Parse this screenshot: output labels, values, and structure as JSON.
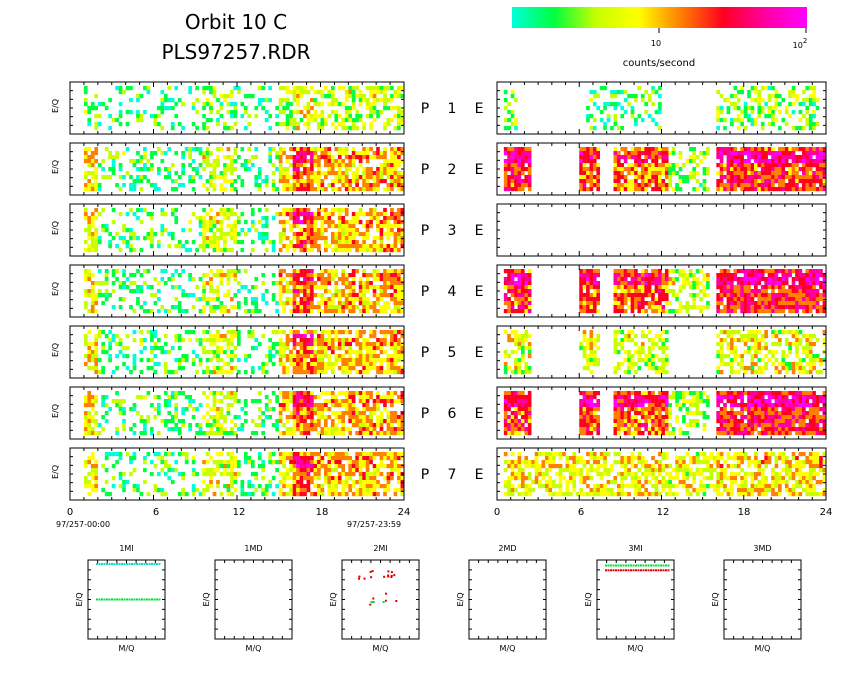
{
  "header": {
    "title_line1": "Orbit 10 C",
    "title_line2": "PLS97257.RDR"
  },
  "colorbar": {
    "tick_10": "10",
    "tick_100_base": "10",
    "tick_100_exp": "2",
    "label": "counts/second",
    "stops": [
      "#00ffd8",
      "#00ff40",
      "#c8ff00",
      "#ffff00",
      "#ff8000",
      "#ff0020",
      "#ff00a0",
      "#ff00ff"
    ]
  },
  "panel_labels": [
    {
      "p": "P",
      "n": "1",
      "e": "E"
    },
    {
      "p": "P",
      "n": "2",
      "e": "E"
    },
    {
      "p": "P",
      "n": "3",
      "e": "E"
    },
    {
      "p": "P",
      "n": "4",
      "e": "E"
    },
    {
      "p": "P",
      "n": "5",
      "e": "E"
    },
    {
      "p": "P",
      "n": "6",
      "e": "E"
    },
    {
      "p": "P",
      "n": "7",
      "e": "E"
    }
  ],
  "left_ylabel": "E/Q",
  "left_xticks": [
    "0",
    "6",
    "12",
    "18",
    "24"
  ],
  "right_xticks": [
    "0",
    "6",
    "12",
    "18",
    "24"
  ],
  "left_start_label": "97/257-00:00",
  "left_end_label": "97/257-23:59",
  "small_panels": [
    {
      "title": "1MI",
      "xlabel": "M/Q",
      "ylabel": "E/Q"
    },
    {
      "title": "1MD",
      "xlabel": "M/Q",
      "ylabel": "E/Q"
    },
    {
      "title": "2MI",
      "xlabel": "M/Q",
      "ylabel": "E/Q"
    },
    {
      "title": "2MD",
      "xlabel": "M/Q",
      "ylabel": "E/Q"
    },
    {
      "title": "3MI",
      "xlabel": "M/Q",
      "ylabel": "E/Q"
    },
    {
      "title": "3MD",
      "xlabel": "M/Q",
      "ylabel": "E/Q"
    }
  ],
  "chart_data": {
    "type": "heatmap",
    "x_unit_range": [
      0,
      24
    ],
    "color_scale": "log",
    "color_range": [
      1,
      100
    ],
    "left_column": {
      "activity_bands": [
        {
          "start": 1.0,
          "end": 2.0,
          "level": 1.5
        },
        {
          "start": 2.0,
          "end": 6.0,
          "level": 0.35
        },
        {
          "start": 6.0,
          "end": 9.5,
          "level": 0.4
        },
        {
          "start": 9.5,
          "end": 12.0,
          "level": 1.2
        },
        {
          "start": 12.0,
          "end": 15.0,
          "level": 0.35
        },
        {
          "start": 15.0,
          "end": 16.0,
          "level": 1.6
        },
        {
          "start": 16.0,
          "end": 17.5,
          "level": 2.4
        },
        {
          "start": 17.5,
          "end": 20.0,
          "level": 1.8
        },
        {
          "start": 20.0,
          "end": 24.0,
          "level": 1.9
        }
      ]
    },
    "right_column": {
      "rows": [
        {
          "panel": "P1",
          "bands": [
            {
              "start": 0.5,
              "end": 1.5,
              "level": 0.8
            },
            {
              "start": 6.5,
              "end": 12.0,
              "level": 0.3
            },
            {
              "start": 16.0,
              "end": 23.5,
              "level": 0.7
            }
          ]
        },
        {
          "panel": "P2",
          "bands": [
            {
              "start": 0.5,
              "end": 2.5,
              "level": 2.6
            },
            {
              "start": 6.0,
              "end": 7.5,
              "level": 2.4
            },
            {
              "start": 8.5,
              "end": 12.5,
              "level": 2.2
            },
            {
              "start": 12.5,
              "end": 15.5,
              "level": 0.8
            },
            {
              "start": 16.0,
              "end": 24.0,
              "level": 2.6
            }
          ]
        },
        {
          "panel": "P3",
          "bands": []
        },
        {
          "panel": "P4",
          "bands": [
            {
              "start": 0.5,
              "end": 2.5,
              "level": 2.6
            },
            {
              "start": 6.0,
              "end": 7.5,
              "level": 2.4
            },
            {
              "start": 8.5,
              "end": 12.5,
              "level": 2.4
            },
            {
              "start": 12.5,
              "end": 15.5,
              "level": 1.1
            },
            {
              "start": 16.0,
              "end": 24.0,
              "level": 2.7
            }
          ]
        },
        {
          "panel": "P5",
          "bands": [
            {
              "start": 0.5,
              "end": 2.5,
              "level": 1.2
            },
            {
              "start": 6.0,
              "end": 7.5,
              "level": 1.2
            },
            {
              "start": 8.5,
              "end": 12.5,
              "level": 1.1
            },
            {
              "start": 16.0,
              "end": 24.0,
              "level": 1.3
            }
          ]
        },
        {
          "panel": "P6",
          "bands": [
            {
              "start": 0.5,
              "end": 2.5,
              "level": 2.6
            },
            {
              "start": 6.0,
              "end": 7.5,
              "level": 2.5
            },
            {
              "start": 8.5,
              "end": 12.5,
              "level": 2.4
            },
            {
              "start": 12.5,
              "end": 15.5,
              "level": 0.9
            },
            {
              "start": 16.0,
              "end": 24.0,
              "level": 2.7
            }
          ]
        },
        {
          "panel": "P7",
          "bands": [
            {
              "start": 0.5,
              "end": 7.0,
              "level": 1.5
            },
            {
              "start": 7.0,
              "end": 12.5,
              "level": 1.5
            },
            {
              "start": 12.5,
              "end": 16.0,
              "level": 1.3
            },
            {
              "start": 16.0,
              "end": 24.0,
              "level": 1.6
            }
          ]
        }
      ]
    },
    "small_panels_data": [
      {
        "panel": "1MI",
        "lines": [
          {
            "y_frac": 0.5,
            "color": "#00e040"
          },
          {
            "y_frac": 0.95,
            "color": "#00e0c0"
          }
        ]
      },
      {
        "panel": "1MD",
        "lines": []
      },
      {
        "panel": "2MI",
        "points": "sparse",
        "colors": [
          "#e00000",
          "#00e040"
        ]
      },
      {
        "panel": "2MD",
        "lines": []
      },
      {
        "panel": "3MI",
        "lines": [
          {
            "y_frac": 0.93,
            "color": "#00e040"
          },
          {
            "y_frac": 0.87,
            "color": "#e00000"
          }
        ]
      },
      {
        "panel": "3MD",
        "lines": []
      }
    ]
  }
}
